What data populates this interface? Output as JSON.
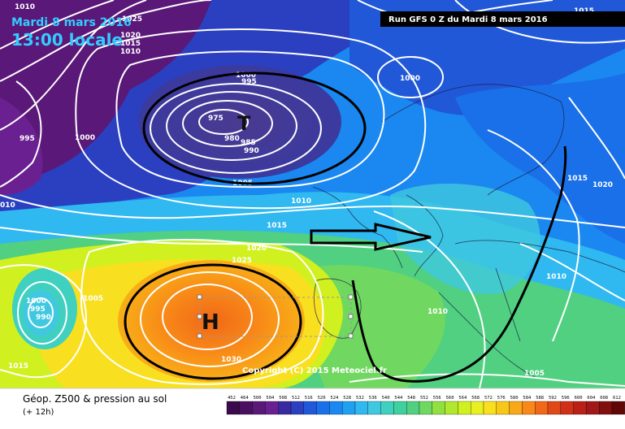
{
  "header": {
    "date": "Mardi 8 mars 2016",
    "time": "13:00 locale"
  },
  "run_info": "Run GFS 0 Z du Mardi 8 mars 2016",
  "copyright": "Copyright (C) 2015 Meteociel.fr",
  "legend": {
    "title": "Géop. Z500 & pression au sol",
    "subtitle": "(+ 12h)"
  },
  "scale": {
    "values": [
      "452",
      "464",
      "500",
      "504",
      "508",
      "512",
      "516",
      "520",
      "524",
      "528",
      "532",
      "536",
      "540",
      "544",
      "548",
      "552",
      "556",
      "560",
      "564",
      "568",
      "572",
      "576",
      "580",
      "584",
      "588",
      "592",
      "596",
      "600",
      "604",
      "608",
      "612"
    ],
    "colors": [
      "#3a0a4a",
      "#4a1060",
      "#5a1878",
      "#6a2090",
      "#3a2aa0",
      "#2a40c0",
      "#2058d8",
      "#1a70e8",
      "#1a88f0",
      "#20a0f0",
      "#30b8f0",
      "#40c8e0",
      "#40d0c0",
      "#40d0a0",
      "#50d080",
      "#70d860",
      "#90e040",
      "#b0e830",
      "#d0f020",
      "#e8f020",
      "#f8e020",
      "#f8c818",
      "#f8a818",
      "#f88818",
      "#f06818",
      "#e04818",
      "#d03018",
      "#b82018",
      "#a01818",
      "#801010",
      "#600808"
    ]
  },
  "isobar_labels": [
    {
      "text": "1025"
    },
    {
      "text": "1020"
    },
    {
      "text": "1015"
    },
    {
      "text": "1010"
    },
    {
      "text": "1010"
    },
    {
      "text": "1000"
    },
    {
      "text": "995"
    },
    {
      "text": "975"
    },
    {
      "text": "980"
    },
    {
      "text": "985"
    },
    {
      "text": "990"
    },
    {
      "text": "1005"
    },
    {
      "text": "995"
    },
    {
      "text": "1000"
    },
    {
      "text": "1000"
    },
    {
      "text": "010"
    },
    {
      "text": "1010"
    },
    {
      "text": "1015"
    },
    {
      "text": "1020"
    },
    {
      "text": "1025"
    },
    {
      "text": "1000"
    },
    {
      "text": "995"
    },
    {
      "text": "990"
    },
    {
      "text": "1005"
    },
    {
      "text": "1015"
    },
    {
      "text": "1030"
    },
    {
      "text": "1010"
    },
    {
      "text": "1015"
    },
    {
      "text": "1020"
    },
    {
      "text": "1010"
    },
    {
      "text": "1005"
    },
    {
      "text": "1015"
    }
  ],
  "markers": {
    "low": "T",
    "high": "H"
  },
  "colors": {
    "annotation": "#000000",
    "isobar": "#ffffff",
    "header_text": "#33ccff"
  }
}
